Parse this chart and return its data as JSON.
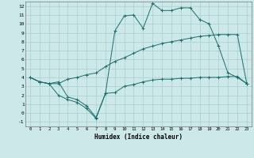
{
  "xlabel": "Humidex (Indice chaleur)",
  "background_color": "#cce8e8",
  "grid_color": "#aacece",
  "line_color": "#1a6e6e",
  "xlim": [
    -0.5,
    23.5
  ],
  "ylim": [
    -1.5,
    12.5
  ],
  "yticks": [
    -1,
    0,
    1,
    2,
    3,
    4,
    5,
    6,
    7,
    8,
    9,
    10,
    11,
    12
  ],
  "xticks": [
    0,
    1,
    2,
    3,
    4,
    5,
    6,
    7,
    8,
    9,
    10,
    11,
    12,
    13,
    14,
    15,
    16,
    17,
    18,
    19,
    20,
    21,
    22,
    23
  ],
  "line1_x": [
    0,
    1,
    2,
    3,
    4,
    5,
    6,
    7,
    8,
    9,
    10,
    11,
    12,
    13,
    14,
    15,
    16,
    17,
    18,
    19,
    20,
    21,
    22,
    23
  ],
  "line1_y": [
    4.0,
    3.5,
    3.3,
    3.3,
    3.8,
    4.0,
    4.3,
    4.5,
    5.2,
    5.8,
    6.2,
    6.7,
    7.2,
    7.5,
    7.8,
    8.0,
    8.2,
    8.4,
    8.6,
    8.7,
    8.8,
    8.8,
    8.8,
    3.3
  ],
  "line2_x": [
    0,
    1,
    2,
    3,
    4,
    5,
    6,
    7,
    8,
    9,
    10,
    11,
    12,
    13,
    14,
    15,
    16,
    17,
    18,
    19,
    20,
    21,
    22,
    23
  ],
  "line2_y": [
    4.0,
    3.5,
    3.3,
    3.5,
    1.8,
    1.5,
    0.8,
    -0.5,
    2.2,
    9.2,
    10.9,
    11.0,
    9.5,
    12.3,
    11.5,
    11.5,
    11.8,
    11.8,
    10.5,
    10.0,
    7.5,
    4.5,
    4.0,
    3.3
  ],
  "line3_x": [
    0,
    1,
    2,
    3,
    4,
    5,
    6,
    7,
    8,
    9,
    10,
    11,
    12,
    13,
    14,
    15,
    16,
    17,
    18,
    19,
    20,
    21,
    22,
    23
  ],
  "line3_y": [
    4.0,
    3.5,
    3.3,
    2.0,
    1.5,
    1.2,
    0.5,
    -0.6,
    2.2,
    2.3,
    3.0,
    3.2,
    3.5,
    3.7,
    3.8,
    3.8,
    3.9,
    3.9,
    4.0,
    4.0,
    4.0,
    4.1,
    4.1,
    3.3
  ]
}
